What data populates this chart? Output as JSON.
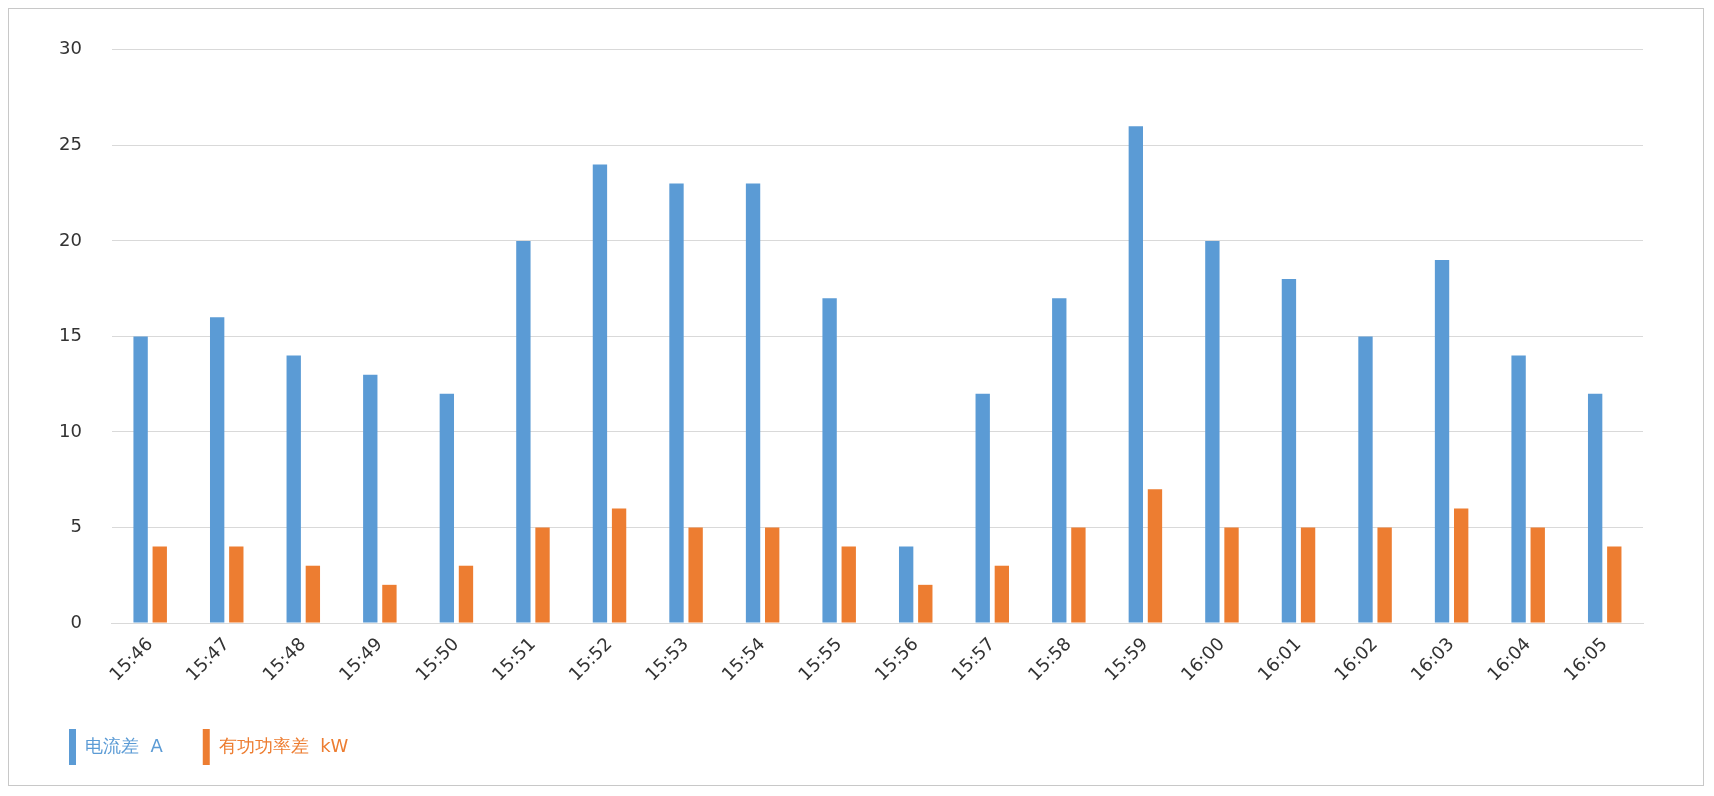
{
  "chart_data": {
    "type": "bar",
    "categories": [
      "15:46",
      "15:47",
      "15:48",
      "15:49",
      "15:50",
      "15:51",
      "15:52",
      "15:53",
      "15:54",
      "15:55",
      "15:56",
      "15:57",
      "15:58",
      "15:59",
      "16:00",
      "16:01",
      "16:02",
      "16:03",
      "16:04",
      "16:05"
    ],
    "series": [
      {
        "name": "电流差  A",
        "color": "#5b9bd5",
        "values": [
          15,
          16,
          14,
          13,
          12,
          20,
          24,
          23,
          23,
          17,
          4,
          12,
          17,
          26,
          20,
          18,
          15,
          19,
          14,
          12
        ]
      },
      {
        "name": "有功功率差  kW",
        "color": "#ed7d31",
        "values": [
          4,
          4,
          3,
          2,
          3,
          5,
          6,
          5,
          5,
          4,
          2,
          3,
          5,
          7,
          5,
          5,
          5,
          6,
          5,
          4
        ]
      }
    ],
    "ylim": [
      0,
      30
    ],
    "yticks": [
      0,
      5,
      10,
      15,
      20,
      25,
      30
    ],
    "grid": "y",
    "legend": "bottom left"
  }
}
